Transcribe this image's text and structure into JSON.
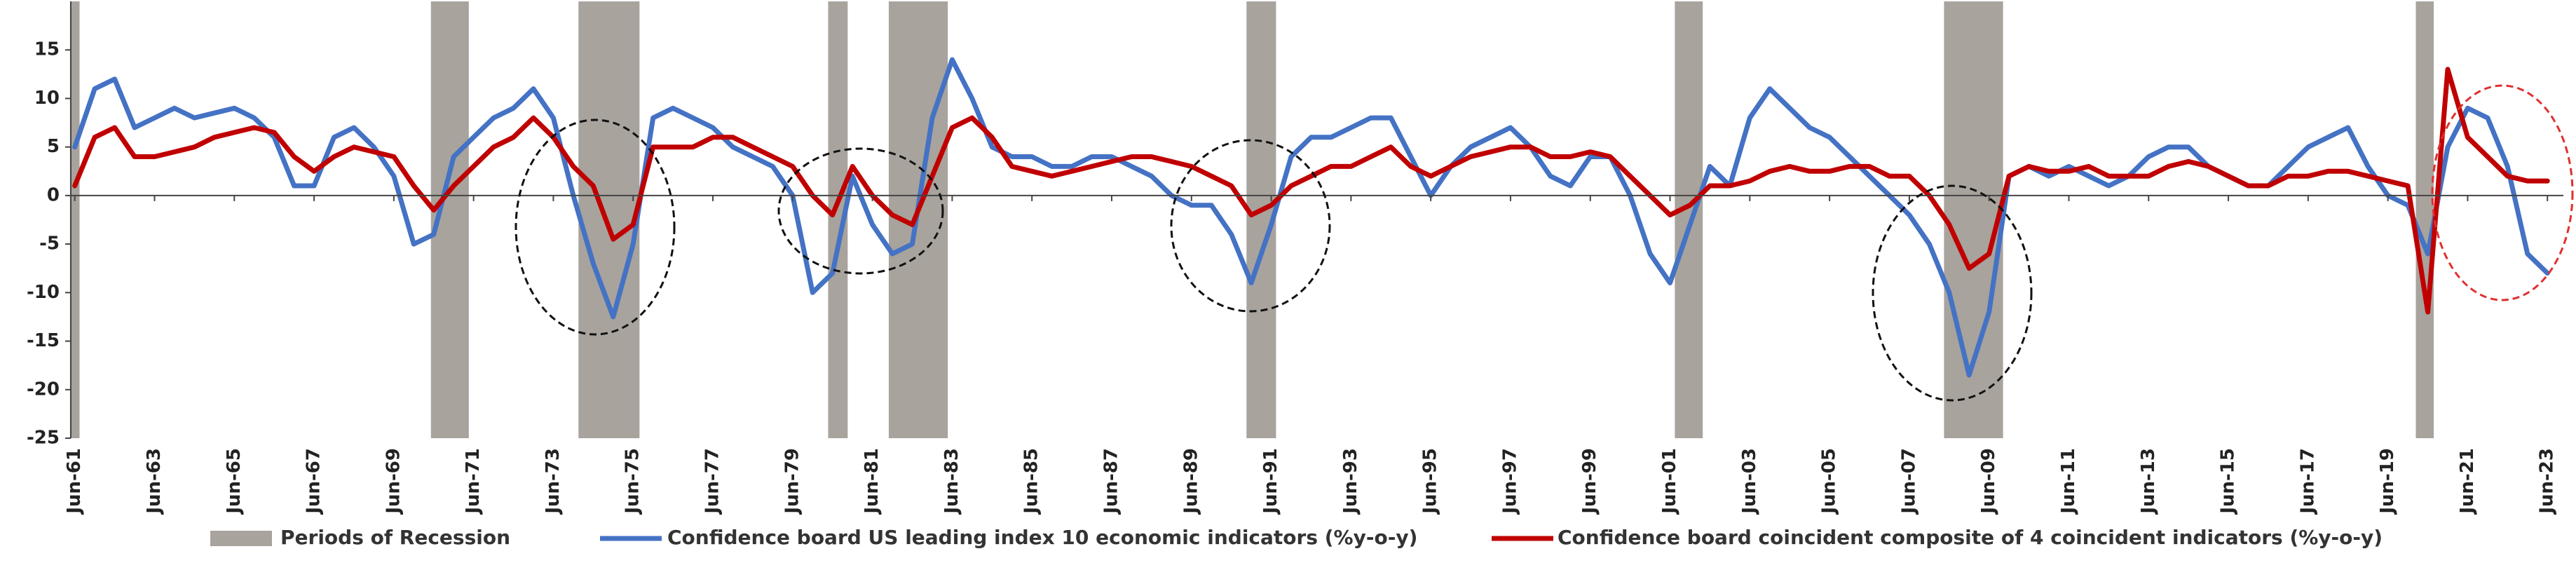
{
  "chart_data": {
    "type": "line",
    "x": [
      1961.5,
      1962,
      1962.5,
      1963,
      1963.5,
      1964,
      1964.5,
      1965,
      1965.5,
      1966,
      1966.5,
      1967,
      1967.5,
      1968,
      1968.5,
      1969,
      1969.5,
      1970,
      1970.5,
      1971,
      1971.5,
      1972,
      1972.5,
      1973,
      1973.5,
      1974,
      1974.5,
      1975,
      1975.5,
      1976,
      1976.5,
      1977,
      1977.5,
      1978,
      1978.5,
      1979,
      1979.5,
      1980,
      1980.5,
      1981,
      1981.5,
      1982,
      1982.5,
      1983,
      1983.5,
      1984,
      1984.5,
      1985,
      1985.5,
      1986,
      1986.5,
      1987,
      1987.5,
      1988,
      1988.5,
      1989,
      1989.5,
      1990,
      1990.5,
      1991,
      1991.5,
      1992,
      1992.5,
      1993,
      1993.5,
      1994,
      1994.5,
      1995,
      1995.5,
      1996,
      1996.5,
      1997,
      1997.5,
      1998,
      1998.5,
      1999,
      1999.5,
      2000,
      2000.5,
      2001,
      2001.5,
      2002,
      2002.5,
      2003,
      2003.5,
      2004,
      2004.5,
      2005,
      2005.5,
      2006,
      2006.5,
      2007,
      2007.5,
      2008,
      2008.5,
      2009,
      2009.5,
      2010,
      2010.5,
      2011,
      2011.5,
      2012,
      2012.5,
      2013,
      2013.5,
      2014,
      2014.5,
      2015,
      2015.5,
      2016,
      2016.5,
      2017,
      2017.5,
      2018,
      2018.5,
      2019,
      2019.5,
      2020,
      2020.5,
      2021,
      2021.5,
      2022,
      2022.5,
      2023,
      2023.5
    ],
    "series": [
      {
        "name": "Confidence board US leading index 10 economic indicators (%y-o-y)",
        "color": "#4472c4",
        "values": [
          5,
          11,
          12,
          7,
          8,
          9,
          8,
          8.5,
          9,
          8,
          6,
          1,
          1,
          6,
          7,
          5,
          2,
          -5,
          -4,
          4,
          6,
          8,
          9,
          11,
          8,
          0,
          -7,
          -12.5,
          -5,
          8,
          9,
          8,
          7,
          5,
          4,
          3,
          0,
          -10,
          -8,
          2,
          -3,
          -6,
          -5,
          8,
          14,
          10,
          5,
          4,
          4,
          3,
          3,
          4,
          4,
          3,
          2,
          0,
          -1,
          -1,
          -4,
          -9,
          -3,
          4,
          6,
          6,
          7,
          8,
          8,
          4,
          0,
          3,
          5,
          6,
          7,
          5,
          2,
          1,
          4,
          4,
          0,
          -6,
          -9,
          -3,
          3,
          1,
          8,
          11,
          9,
          7,
          6,
          4,
          2,
          0,
          -2,
          -5,
          -10,
          -18.5,
          -12,
          2,
          3,
          2,
          3,
          2,
          1,
          2,
          4,
          5,
          5,
          3,
          2,
          1,
          1,
          3,
          5,
          6,
          7,
          3,
          0,
          -1,
          -6,
          5,
          9,
          8,
          3,
          -6,
          -8
        ]
      },
      {
        "name": "Confidence board coincident composite of 4 coincident indicators (%y-o-y)",
        "color": "#c00000",
        "values": [
          1,
          6,
          7,
          4,
          4,
          4.5,
          5,
          6,
          6.5,
          7,
          6.5,
          4,
          2.5,
          4,
          5,
          4.5,
          4,
          1,
          -1.5,
          1,
          3,
          5,
          6,
          8,
          6,
          3,
          1,
          -4.5,
          -3,
          5,
          5,
          5,
          6,
          6,
          5,
          4,
          3,
          0,
          -2,
          3,
          0,
          -2,
          -3,
          2,
          7,
          8,
          6,
          3,
          2.5,
          2,
          2.5,
          3,
          3.5,
          4,
          4,
          3.5,
          3,
          2,
          1,
          -2,
          -1,
          1,
          2,
          3,
          3,
          4,
          5,
          3,
          2,
          3,
          4,
          4.5,
          5,
          5,
          4,
          4,
          4.5,
          4,
          2,
          0,
          -2,
          -1,
          1,
          1,
          1.5,
          2.5,
          3,
          2.5,
          2.5,
          3,
          3,
          2,
          2,
          0,
          -3,
          -7.5,
          -6,
          2,
          3,
          2.5,
          2.5,
          3,
          2,
          2,
          2,
          3,
          3.5,
          3,
          2,
          1,
          1,
          2,
          2,
          2.5,
          2.5,
          2,
          1.5,
          1,
          -12,
          13,
          6,
          4,
          2,
          1.5,
          1.5
        ]
      }
    ],
    "recession": {
      "name": "Periods of Recession",
      "color": "#a8a39d",
      "periods": [
        [
          1961.38,
          1961.62
        ],
        [
          1970.43,
          1971.38
        ],
        [
          1974.13,
          1975.66
        ],
        [
          1980.39,
          1980.88
        ],
        [
          1981.91,
          1983.39
        ],
        [
          1990.88,
          1991.62
        ],
        [
          2001.62,
          2002.32
        ],
        [
          2008.37,
          2009.85
        ],
        [
          2020.2,
          2020.65
        ]
      ]
    },
    "xlim": [
      1961.4,
      2023.9
    ],
    "xticks": [
      {
        "value": 1961.5,
        "label": "Jun-61"
      },
      {
        "value": 1963.5,
        "label": "Jun-63"
      },
      {
        "value": 1965.5,
        "label": "Jun-65"
      },
      {
        "value": 1967.5,
        "label": "Jun-67"
      },
      {
        "value": 1969.5,
        "label": "Jun-69"
      },
      {
        "value": 1971.5,
        "label": "Jun-71"
      },
      {
        "value": 1973.5,
        "label": "Jun-73"
      },
      {
        "value": 1975.5,
        "label": "Jun-75"
      },
      {
        "value": 1977.5,
        "label": "Jun-77"
      },
      {
        "value": 1979.5,
        "label": "Jun-79"
      },
      {
        "value": 1981.5,
        "label": "Jun-81"
      },
      {
        "value": 1983.5,
        "label": "Jun-83"
      },
      {
        "value": 1985.5,
        "label": "Jun-85"
      },
      {
        "value": 1987.5,
        "label": "Jun-87"
      },
      {
        "value": 1989.5,
        "label": "Jun-89"
      },
      {
        "value": 1991.5,
        "label": "Jun-91"
      },
      {
        "value": 1993.5,
        "label": "Jun-93"
      },
      {
        "value": 1995.5,
        "label": "Jun-95"
      },
      {
        "value": 1997.5,
        "label": "Jun-97"
      },
      {
        "value": 1999.5,
        "label": "Jun-99"
      },
      {
        "value": 2001.5,
        "label": "Jun-01"
      },
      {
        "value": 2003.5,
        "label": "Jun-03"
      },
      {
        "value": 2005.5,
        "label": "Jun-05"
      },
      {
        "value": 2007.5,
        "label": "Jun-07"
      },
      {
        "value": 2009.5,
        "label": "Jun-09"
      },
      {
        "value": 2011.5,
        "label": "Jun-11"
      },
      {
        "value": 2013.5,
        "label": "Jun-13"
      },
      {
        "value": 2015.5,
        "label": "Jun-15"
      },
      {
        "value": 2017.5,
        "label": "Jun-17"
      },
      {
        "value": 2019.5,
        "label": "Jun-19"
      },
      {
        "value": 2021.5,
        "label": "Jun-21"
      },
      {
        "value": 2023.5,
        "label": "Jun-23"
      }
    ],
    "ylim": [
      -25,
      20
    ],
    "yticks": [
      -25,
      -20,
      -15,
      -10,
      -5,
      0,
      5,
      10,
      15
    ],
    "grid": false,
    "legend": "bottom"
  }
}
